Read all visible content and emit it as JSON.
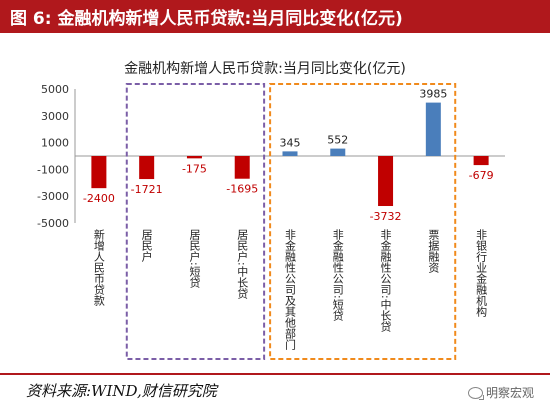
{
  "figure": {
    "label": "图 6:",
    "title": "金融机构新增人民币贷款:当月同比变化(亿元)",
    "source": "资料来源:WIND,财信研究院",
    "watermark": "明察宏观"
  },
  "colors": {
    "header_bg": "#b0181c",
    "negative": "#c00000",
    "positive": "#4a7ebb",
    "box_household": "#7b5ea7",
    "box_nonfinancial": "#f08a1c"
  },
  "chart_data": {
    "type": "bar",
    "title": "金融机构新增人民币贷款:当月同比变化(亿元)",
    "categories": [
      "新增人民币贷款",
      "居民户",
      "居民户:短贷",
      "居民户:中长贷",
      "非金融性公司及其他部门",
      "非金融性公司:短贷",
      "非金融性公司:中长贷",
      "票据融资",
      "非银行业金融机构"
    ],
    "values": [
      -2400,
      -1721,
      -175,
      -1695,
      345,
      552,
      -3732,
      3985,
      -679
    ],
    "value_labels": [
      "-2400",
      "-1721",
      "-175",
      "-1695",
      "345",
      "552",
      "-3732",
      "3985",
      "-679"
    ],
    "ylim": [
      -5000,
      5000
    ],
    "yticks": [
      5000,
      3000,
      1000,
      -1000,
      -3000,
      -5000
    ],
    "ytick_labels": [
      "5000",
      "3000",
      "1000",
      "-1000",
      "-3000",
      "-5000"
    ],
    "grid": false,
    "legend": "none",
    "groups": [
      {
        "name": "household",
        "first": 1,
        "last": 3,
        "color": "#7b5ea7"
      },
      {
        "name": "nonfinancial",
        "first": 4,
        "last": 7,
        "color": "#f08a1c"
      }
    ]
  }
}
